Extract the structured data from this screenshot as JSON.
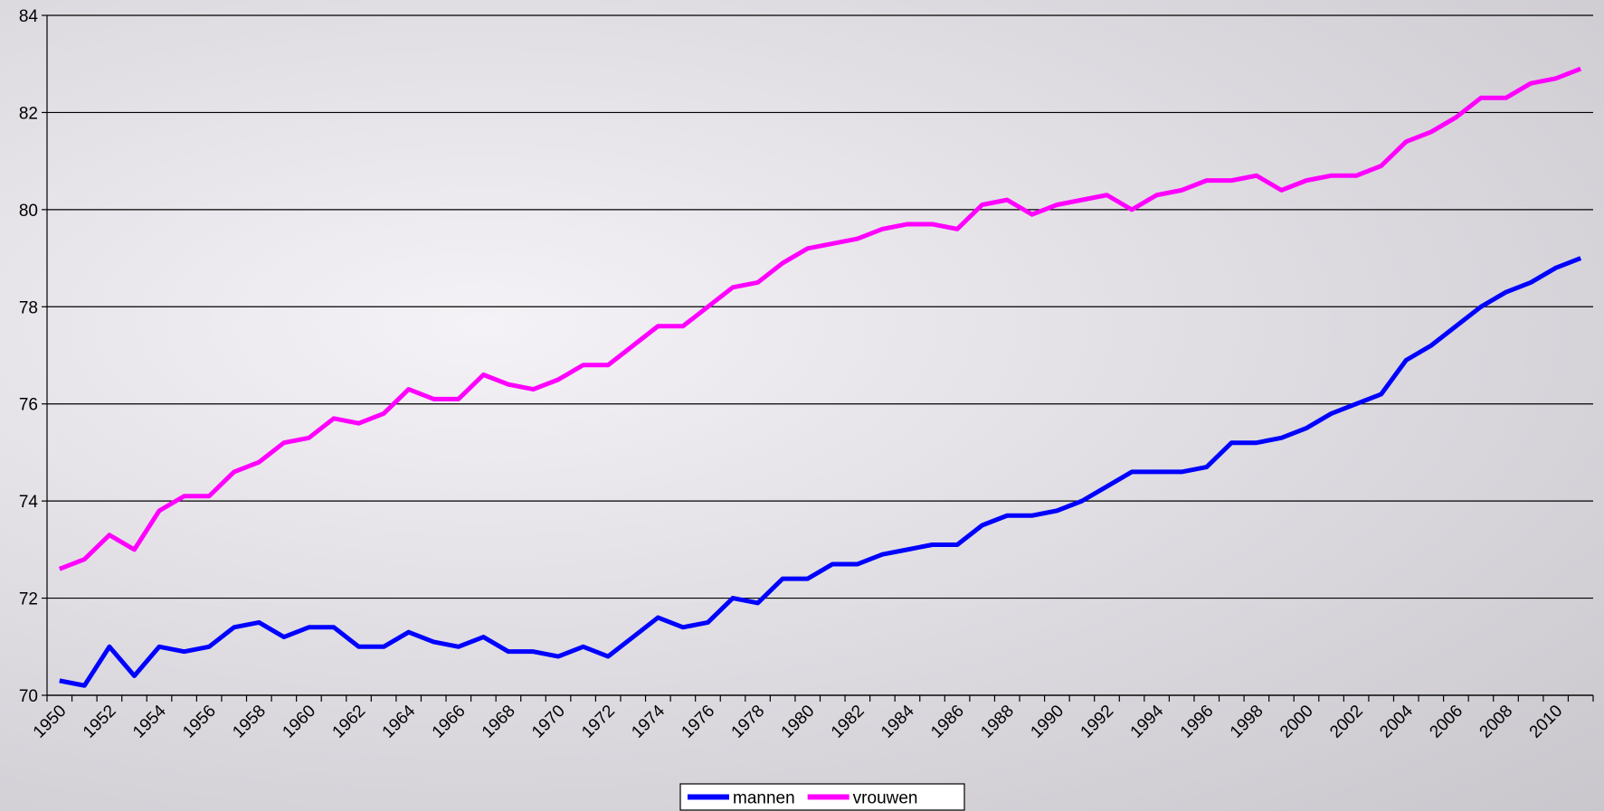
{
  "chart_data": {
    "type": "line",
    "categories": [
      "1950",
      null,
      "1952",
      null,
      "1954",
      null,
      "1956",
      null,
      "1958",
      null,
      "1960",
      null,
      "1962",
      null,
      "1964",
      null,
      "1966",
      null,
      "1968",
      null,
      "1970",
      null,
      "1972",
      null,
      "1974",
      null,
      "1976",
      null,
      "1978",
      null,
      "1980",
      null,
      "1982",
      null,
      "1984",
      null,
      "1986",
      null,
      "1988",
      null,
      "1990",
      null,
      "1992",
      null,
      "1994",
      null,
      "1996",
      null,
      "1998",
      null,
      "2000",
      null,
      "2002",
      null,
      "2004",
      null,
      "2006",
      null,
      "2008",
      null,
      "2010",
      null
    ],
    "series": [
      {
        "name": "mannen",
        "color": "#0000ff",
        "values": [
          70.3,
          70.2,
          71.0,
          70.4,
          71.0,
          70.9,
          71.0,
          71.4,
          71.5,
          71.2,
          71.4,
          71.4,
          71.0,
          71.0,
          71.3,
          71.1,
          71.0,
          71.2,
          70.9,
          70.9,
          70.8,
          71.0,
          70.8,
          71.2,
          71.6,
          71.4,
          71.5,
          72.0,
          71.9,
          72.4,
          72.4,
          72.7,
          72.7,
          72.9,
          73.0,
          73.1,
          73.1,
          73.5,
          73.7,
          73.7,
          73.8,
          74.0,
          74.3,
          74.6,
          74.6,
          74.6,
          74.7,
          75.2,
          75.2,
          75.3,
          75.5,
          75.8,
          76.0,
          76.2,
          76.9,
          77.2,
          77.6,
          78.0,
          78.3,
          78.5,
          78.8,
          79.0
        ]
      },
      {
        "name": "vrouwen",
        "color": "#ff00ff",
        "values": [
          72.6,
          72.8,
          73.3,
          73.0,
          73.8,
          74.1,
          74.1,
          74.6,
          74.8,
          75.2,
          75.3,
          75.7,
          75.6,
          75.8,
          76.3,
          76.1,
          76.1,
          76.6,
          76.4,
          76.3,
          76.5,
          76.8,
          76.8,
          77.2,
          77.6,
          77.6,
          78.0,
          78.4,
          78.5,
          78.9,
          79.2,
          79.3,
          79.4,
          79.6,
          79.7,
          79.7,
          79.6,
          80.1,
          80.2,
          79.9,
          80.1,
          80.2,
          80.3,
          80.0,
          80.3,
          80.4,
          80.6,
          80.6,
          80.7,
          80.4,
          80.6,
          80.7,
          80.7,
          80.9,
          81.4,
          81.6,
          81.9,
          82.3,
          82.3,
          82.6,
          82.7,
          82.9
        ]
      }
    ],
    "ylim": [
      70,
      84
    ],
    "yticks": [
      70,
      72,
      74,
      76,
      78,
      80,
      82,
      84
    ],
    "grid": true,
    "legend": "bottom"
  }
}
